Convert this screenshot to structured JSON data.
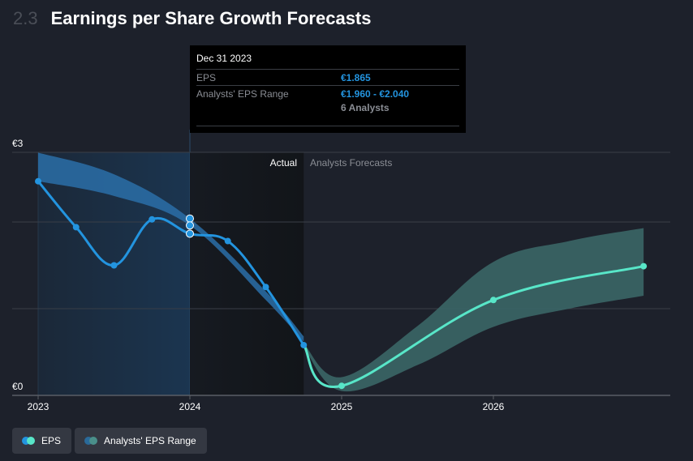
{
  "header": {
    "section_number": "2.3",
    "title": "Earnings per Share Growth Forecasts"
  },
  "tooltip": {
    "date": "Dec 31 2023",
    "rows": [
      {
        "label": "EPS",
        "value": "€1.865"
      },
      {
        "label": "Analysts' EPS Range",
        "value": "€1.960 - €2.040"
      }
    ],
    "analysts_count": "6 Analysts"
  },
  "legend": [
    {
      "label": "EPS",
      "colors": [
        "#2394df",
        "#58e6c8"
      ]
    },
    {
      "label": "Analysts' EPS Range",
      "colors": [
        "#2a6a9a",
        "#4a8f8a"
      ]
    }
  ],
  "colors": {
    "eps_actual": "#2394df",
    "eps_forecast": "#58e6c8",
    "range_actual": "#2a6fa8",
    "range_forecast": "#3b6666",
    "background": "#1d212b"
  },
  "chart_data": {
    "type": "line",
    "title": "Earnings per Share Growth Forecasts",
    "xlabel": "",
    "ylabel": "",
    "y_tick_labels": [
      "€0",
      "€3"
    ],
    "x_tick_labels": [
      "2023",
      "2024",
      "2025",
      "2026"
    ],
    "xlim": [
      2023.0,
      2027.0
    ],
    "ylim": [
      0,
      2.8
    ],
    "grid": true,
    "region_labels": {
      "actual": "Actual",
      "forecast": "Analysts Forecasts"
    },
    "actual_forecast_split": 2024.75,
    "highlight_date": 2024.0,
    "series": [
      {
        "name": "EPS (actual)",
        "x": [
          2023.0,
          2023.25,
          2023.5,
          2023.75,
          2024.0,
          2024.25,
          2024.5,
          2024.75
        ],
        "values": [
          2.47,
          1.94,
          1.5,
          2.03,
          1.865,
          1.78,
          1.25,
          0.58
        ]
      },
      {
        "name": "EPS (forecast)",
        "x": [
          2024.75,
          2025.0,
          2026.0,
          2026.99
        ],
        "values": [
          0.58,
          0.11,
          1.1,
          1.49
        ]
      },
      {
        "name": "Analysts' EPS Range (past)",
        "x": [
          2023.0,
          2023.5,
          2024.0,
          2024.5,
          2024.75
        ],
        "upper": [
          2.8,
          2.55,
          2.04,
          1.2,
          0.68
        ],
        "lower": [
          2.47,
          2.3,
          1.96,
          1.1,
          0.62
        ]
      },
      {
        "name": "Analysts' EPS Range (forecast)",
        "x": [
          2024.75,
          2025.0,
          2025.5,
          2026.0,
          2026.5,
          2026.99
        ],
        "upper": [
          0.6,
          0.21,
          0.8,
          1.54,
          1.78,
          1.93
        ],
        "lower": [
          0.56,
          0.05,
          0.35,
          0.79,
          1.0,
          1.15
        ]
      }
    ]
  }
}
